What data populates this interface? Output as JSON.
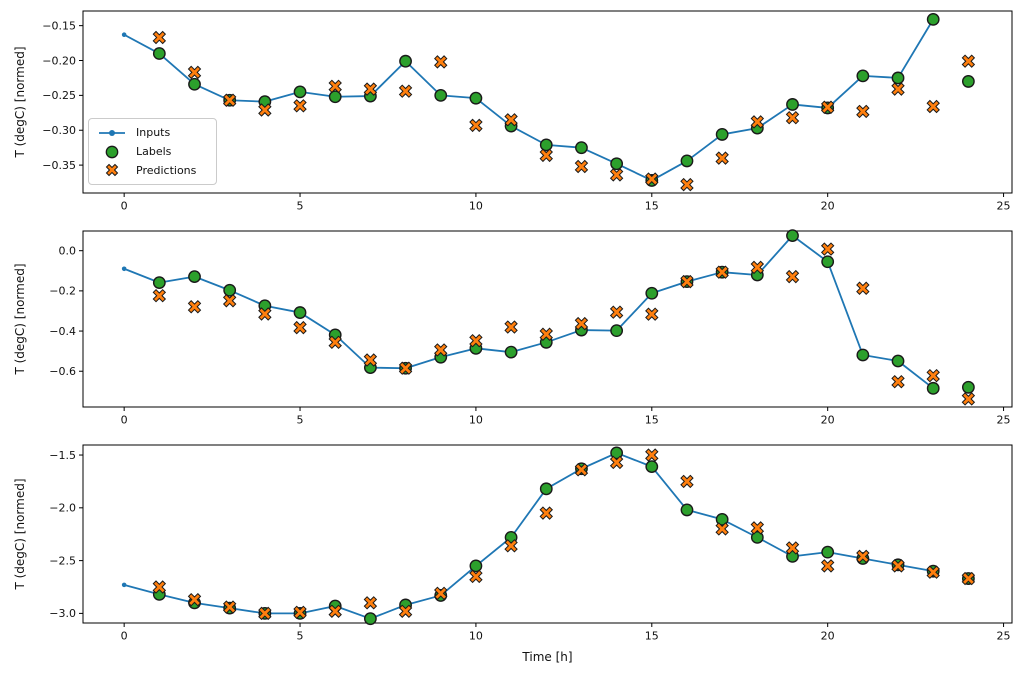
{
  "figure": {
    "kind": "matplotlib time-series prediction figure",
    "background": "#ffffff",
    "subplot_count": 3,
    "shared_ylabel": "T (degC) [normed]",
    "shared_xlabel": "Time [h]"
  },
  "style": {
    "line_color": "#1f77b4",
    "labels_color": "#2ca02c",
    "predictions_color": "#ff7f0e",
    "marker_edge_color": "#1a1a1a",
    "axis_color": "#000000",
    "text_color": "#111111",
    "legend_border_color": "#cbcbcb"
  },
  "legend": {
    "position": "lower-left area of first subplot",
    "items": [
      {
        "label": "Inputs",
        "marker": "line-with-dot",
        "color": "#1f77b4"
      },
      {
        "label": "Labels",
        "marker": "filled-circle",
        "color": "#2ca02c"
      },
      {
        "label": "Predictions",
        "marker": "thick-x",
        "color": "#ff7f0e"
      }
    ]
  },
  "chart_data": [
    {
      "id": "subplot-1",
      "type": "line",
      "title": "",
      "xlabel": "",
      "ylabel": "T (degC) [normed]",
      "xlim": [
        -1.17,
        25.24
      ],
      "ylim": [
        -0.39,
        -0.129
      ],
      "grid": false,
      "xticks": {
        "values": [
          0,
          5,
          10,
          15,
          20,
          25
        ],
        "labels": [
          "0",
          "5",
          "10",
          "15",
          "20",
          "25"
        ]
      },
      "yticks": {
        "values": [
          -0.15,
          -0.2,
          -0.25,
          -0.3,
          -0.35
        ],
        "labels": [
          "−0.15",
          "−0.20",
          "−0.25",
          "−0.30",
          "−0.35"
        ]
      },
      "series": [
        {
          "name": "Inputs",
          "style": "line-with-dots",
          "color": "#1f77b4",
          "x": [
            0,
            1,
            2,
            3,
            4,
            5,
            6,
            7,
            8,
            9,
            10,
            11,
            12,
            13,
            14,
            15,
            16,
            17,
            18,
            19,
            20,
            21,
            22,
            23
          ],
          "y": [
            -0.163,
            -0.19,
            -0.234,
            -0.257,
            -0.259,
            -0.245,
            -0.252,
            -0.251,
            -0.201,
            -0.25,
            -0.254,
            -0.294,
            -0.321,
            -0.325,
            -0.348,
            -0.372,
            -0.344,
            -0.306,
            -0.297,
            -0.263,
            -0.268,
            -0.222,
            -0.225,
            -0.141
          ]
        },
        {
          "name": "Labels",
          "style": "scatter-circle",
          "color": "#2ca02c",
          "x": [
            1,
            2,
            3,
            4,
            5,
            6,
            7,
            8,
            9,
            10,
            11,
            12,
            13,
            14,
            15,
            16,
            17,
            18,
            19,
            20,
            21,
            22,
            23,
            24
          ],
          "y": [
            -0.19,
            -0.234,
            -0.257,
            -0.259,
            -0.245,
            -0.252,
            -0.251,
            -0.201,
            -0.25,
            -0.254,
            -0.294,
            -0.321,
            -0.325,
            -0.348,
            -0.372,
            -0.344,
            -0.306,
            -0.297,
            -0.263,
            -0.268,
            -0.222,
            -0.225,
            -0.141,
            -0.23
          ]
        },
        {
          "name": "Predictions",
          "style": "scatter-x",
          "color": "#ff7f0e",
          "x": [
            1,
            2,
            3,
            4,
            5,
            6,
            7,
            8,
            9,
            10,
            11,
            12,
            13,
            14,
            15,
            16,
            17,
            18,
            19,
            20,
            21,
            22,
            23,
            24
          ],
          "y": [
            -0.167,
            -0.217,
            -0.257,
            -0.271,
            -0.265,
            -0.237,
            -0.241,
            -0.244,
            -0.202,
            -0.293,
            -0.285,
            -0.336,
            -0.352,
            -0.364,
            -0.37,
            -0.378,
            -0.34,
            -0.288,
            -0.282,
            -0.267,
            -0.273,
            -0.241,
            -0.266,
            -0.201
          ]
        }
      ]
    },
    {
      "id": "subplot-2",
      "type": "line",
      "title": "",
      "xlabel": "",
      "ylabel": "T (degC) [normed]",
      "xlim": [
        -1.17,
        25.24
      ],
      "ylim": [
        -0.778,
        0.098
      ],
      "grid": false,
      "xticks": {
        "values": [
          0,
          5,
          10,
          15,
          20,
          25
        ],
        "labels": [
          "0",
          "5",
          "10",
          "15",
          "20",
          "25"
        ]
      },
      "yticks": {
        "values": [
          0.0,
          -0.2,
          -0.4,
          -0.6
        ],
        "labels": [
          "0.0",
          "−0.2",
          "−0.4",
          "−0.6"
        ]
      },
      "series": [
        {
          "name": "Inputs",
          "style": "line-with-dots",
          "color": "#1f77b4",
          "x": [
            0,
            1,
            2,
            3,
            4,
            5,
            6,
            7,
            8,
            9,
            10,
            11,
            12,
            13,
            14,
            15,
            16,
            17,
            18,
            19,
            20,
            21,
            22,
            23
          ],
          "y": [
            -0.09,
            -0.159,
            -0.129,
            -0.197,
            -0.274,
            -0.308,
            -0.419,
            -0.582,
            -0.585,
            -0.53,
            -0.486,
            -0.505,
            -0.456,
            -0.395,
            -0.398,
            -0.212,
            -0.154,
            -0.107,
            -0.121,
            0.075,
            -0.055,
            -0.519,
            -0.549,
            -0.685
          ]
        },
        {
          "name": "Labels",
          "style": "scatter-circle",
          "color": "#2ca02c",
          "x": [
            1,
            2,
            3,
            4,
            5,
            6,
            7,
            8,
            9,
            10,
            11,
            12,
            13,
            14,
            15,
            16,
            17,
            18,
            19,
            20,
            21,
            22,
            23,
            24
          ],
          "y": [
            -0.159,
            -0.129,
            -0.197,
            -0.274,
            -0.308,
            -0.419,
            -0.582,
            -0.585,
            -0.53,
            -0.486,
            -0.505,
            -0.456,
            -0.395,
            -0.398,
            -0.212,
            -0.154,
            -0.107,
            -0.121,
            0.075,
            -0.055,
            -0.519,
            -0.549,
            -0.685,
            -0.68
          ]
        },
        {
          "name": "Predictions",
          "style": "scatter-x",
          "color": "#ff7f0e",
          "x": [
            1,
            2,
            3,
            4,
            5,
            6,
            7,
            8,
            9,
            10,
            11,
            12,
            13,
            14,
            15,
            16,
            17,
            18,
            19,
            20,
            21,
            22,
            23,
            24
          ],
          "y": [
            -0.224,
            -0.279,
            -0.249,
            -0.315,
            -0.383,
            -0.456,
            -0.544,
            -0.585,
            -0.494,
            -0.448,
            -0.38,
            -0.416,
            -0.363,
            -0.306,
            -0.316,
            -0.154,
            -0.107,
            -0.083,
            -0.129,
            0.008,
            -0.187,
            -0.652,
            -0.622,
            -0.738
          ]
        }
      ]
    },
    {
      "id": "subplot-3",
      "type": "line",
      "title": "",
      "xlabel": "Time [h]",
      "ylabel": "T (degC) [normed]",
      "xlim": [
        -1.17,
        25.24
      ],
      "ylim": [
        -3.091,
        -1.405
      ],
      "grid": false,
      "xticks": {
        "values": [
          0,
          5,
          10,
          15,
          20,
          25
        ],
        "labels": [
          "0",
          "5",
          "10",
          "15",
          "20",
          "25"
        ]
      },
      "yticks": {
        "values": [
          -1.5,
          -2.0,
          -2.5,
          -3.0
        ],
        "labels": [
          "−1.5",
          "−2.0",
          "−2.5",
          "−3.0"
        ]
      },
      "series": [
        {
          "name": "Inputs",
          "style": "line-with-dots",
          "color": "#1f77b4",
          "x": [
            0,
            1,
            2,
            3,
            4,
            5,
            6,
            7,
            8,
            9,
            10,
            11,
            12,
            13,
            14,
            15,
            16,
            17,
            18,
            19,
            20,
            21,
            22,
            23
          ],
          "y": [
            -2.73,
            -2.82,
            -2.9,
            -2.95,
            -3.0,
            -3.0,
            -2.93,
            -3.05,
            -2.92,
            -2.83,
            -2.55,
            -2.28,
            -1.82,
            -1.63,
            -1.48,
            -1.61,
            -2.02,
            -2.11,
            -2.28,
            -2.46,
            -2.42,
            -2.48,
            -2.54,
            -2.6
          ]
        },
        {
          "name": "Labels",
          "style": "scatter-circle",
          "color": "#2ca02c",
          "x": [
            1,
            2,
            3,
            4,
            5,
            6,
            7,
            8,
            9,
            10,
            11,
            12,
            13,
            14,
            15,
            16,
            17,
            18,
            19,
            20,
            21,
            22,
            23,
            24
          ],
          "y": [
            -2.82,
            -2.9,
            -2.95,
            -3.0,
            -3.0,
            -2.93,
            -3.05,
            -2.92,
            -2.83,
            -2.55,
            -2.28,
            -1.82,
            -1.63,
            -1.48,
            -1.61,
            -2.02,
            -2.11,
            -2.28,
            -2.46,
            -2.42,
            -2.48,
            -2.54,
            -2.6,
            -2.67
          ]
        },
        {
          "name": "Predictions",
          "style": "scatter-x",
          "color": "#ff7f0e",
          "x": [
            1,
            2,
            3,
            4,
            5,
            6,
            7,
            8,
            9,
            10,
            11,
            12,
            13,
            14,
            15,
            16,
            17,
            18,
            19,
            20,
            21,
            22,
            23,
            24
          ],
          "y": [
            -2.75,
            -2.87,
            -2.94,
            -3.0,
            -2.99,
            -2.98,
            -2.9,
            -2.98,
            -2.81,
            -2.65,
            -2.36,
            -2.05,
            -1.64,
            -1.57,
            -1.5,
            -1.75,
            -2.2,
            -2.19,
            -2.38,
            -2.55,
            -2.46,
            -2.55,
            -2.61,
            -2.67
          ]
        }
      ]
    }
  ]
}
